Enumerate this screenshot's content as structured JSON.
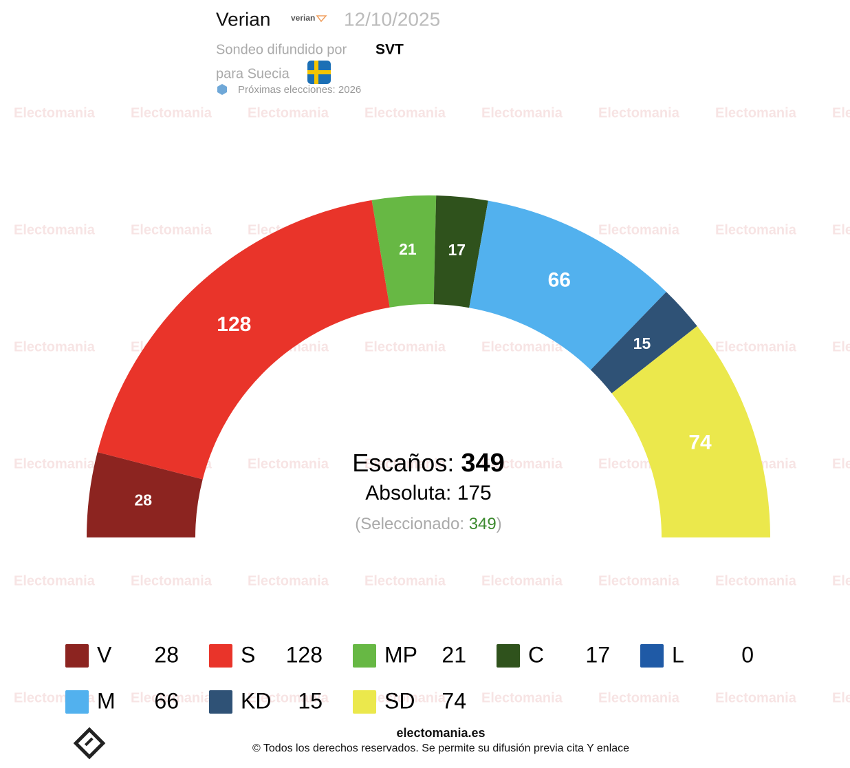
{
  "header": {
    "pollster": "Verian",
    "pollster_logo": "verian",
    "date": "12/10/2025",
    "published_by": "Sondeo difundido por",
    "media": "SVT",
    "country": "para Suecia",
    "next_election": "Próximas elecciones: 2026"
  },
  "chart_data": {
    "type": "parliament",
    "categories": [
      "V",
      "S",
      "MP",
      "C",
      "L",
      "M",
      "KD",
      "SD"
    ],
    "values": [
      28,
      128,
      21,
      17,
      0,
      66,
      15,
      74
    ],
    "colors": [
      "#8c2420",
      "#e9342a",
      "#67b844",
      "#2f521c",
      "#1f5aa6",
      "#52b1ee",
      "#2f5276",
      "#ebe84c"
    ],
    "seats_label": "Escaños:",
    "seats_total": 349,
    "majority_label": "Absoluta:",
    "majority": 175,
    "selected_label": "(Seleccionado:",
    "selected": 349,
    "selected_close": ")"
  },
  "watermark": "Electomania",
  "footer": {
    "site": "electomania.es",
    "copyright": "© Todos los derechos reservados. Se permite su difusión previa cita Y enlace"
  }
}
